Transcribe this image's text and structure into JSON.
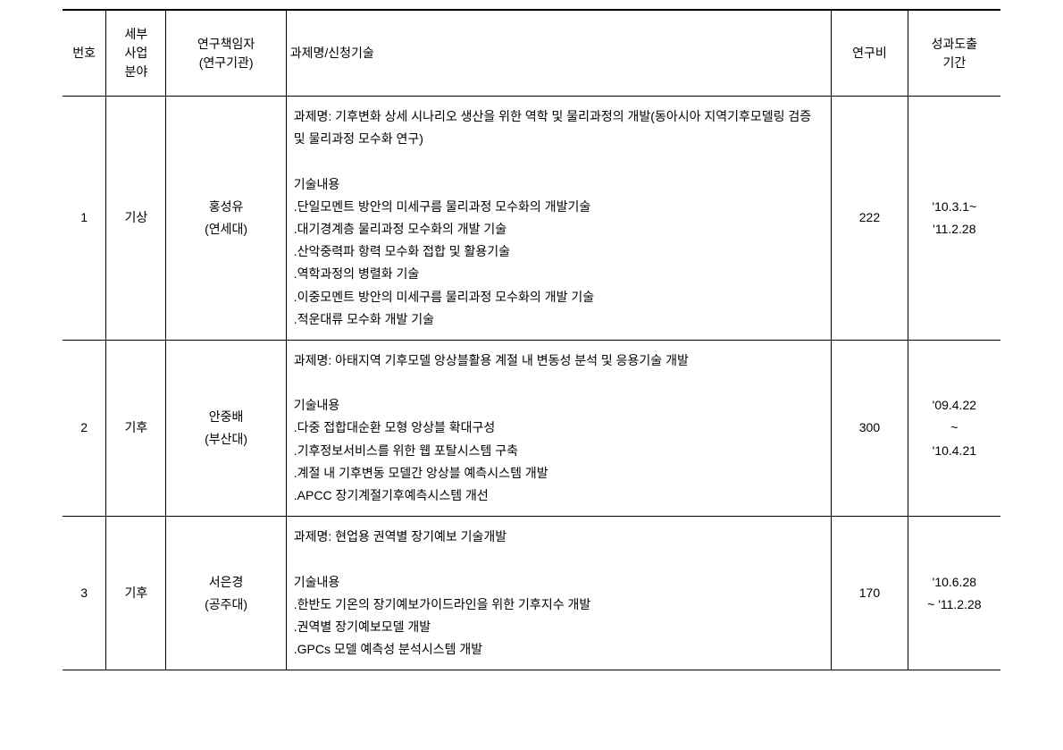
{
  "table": {
    "columns": {
      "num": "번호",
      "field": "세부\n사업\n분야",
      "researcher": "연구책임자\n(연구기관)",
      "project": "과제명/신청기술",
      "budget": "연구비",
      "period": "성과도출\n기간"
    },
    "rows": [
      {
        "num": "1",
        "field": "기상",
        "researcher": "홍성유\n(연세대)",
        "project": "과제명: 기후변화 상세 시나리오 생산을 위한 역학 및 물리과정의 개발(동아시아 지역기후모델링 검증 및 물리과정 모수화 연구)\n\n기술내용\n.단일모멘트 방안의 미세구름 물리과정 모수화의 개발기술\n.대기경계층 물리과정 모수화의 개발 기술\n.산악중력파 항력 모수화 접합 및 활용기술\n.역학과정의 병렬화 기술\n.이중모멘트 방안의 미세구름 물리과정 모수화의 개발 기술\n.적운대류 모수화 개발 기술",
        "budget": "222",
        "period": "'10.3.1~\n'11.2.28"
      },
      {
        "num": "2",
        "field": "기후",
        "researcher": "안중배\n(부산대)",
        "project": "과제명: 아태지역 기후모델 앙상블활용 계절 내 변동성 분석 및 응용기술 개발\n\n기술내용\n.다중 접합대순환 모형 앙상블 확대구성\n.기후정보서비스를 위한 웹 포탈시스템 구축\n.계절 내 기후변동 모델간 앙상블 예측시스템 개발\n.APCC 장기계절기후예측시스템 개선",
        "budget": "300",
        "period": "'09.4.22\n~\n'10.4.21"
      },
      {
        "num": "3",
        "field": "기후",
        "researcher": "서은경\n(공주대)",
        "project": "과제명: 현업용 권역별 장기예보 기술개발\n\n기술내용\n.한반도 기온의 장기예보가이드라인을 위한 기후지수 개발\n.권역별 장기예보모델 개발\n.GPCs 모델 예측성 분석시스템 개발",
        "budget": "170",
        "period": "'10.6.28\n~ '11.2.28"
      }
    ]
  }
}
